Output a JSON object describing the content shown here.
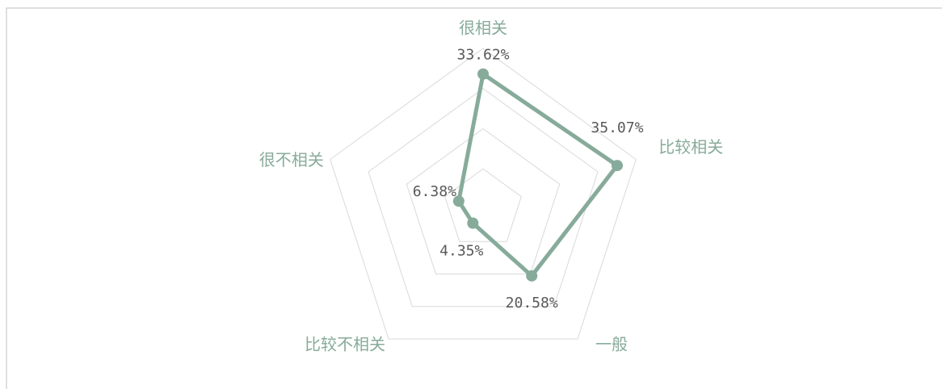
{
  "chart_data": {
    "type": "radar",
    "categories": [
      "很相关",
      "比较相关",
      "一般",
      "比较不相关",
      "很不相关"
    ],
    "values": [
      33.62,
      35.07,
      20.58,
      4.35,
      6.38
    ],
    "value_labels": [
      "33.62%",
      "35.07%",
      "20.58%",
      "4.35%",
      "6.38%"
    ],
    "color": "#87ab9a",
    "rlim": [
      0,
      40
    ],
    "rticks": [
      10,
      20,
      30,
      40
    ],
    "grid": true
  }
}
